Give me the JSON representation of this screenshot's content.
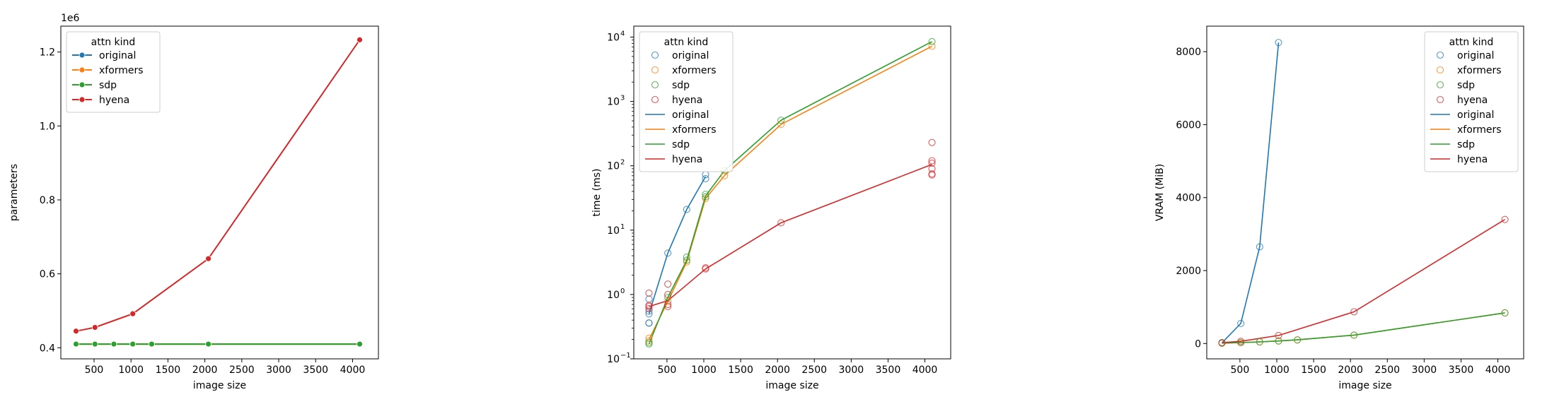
{
  "colors": {
    "original": "#1f77b4",
    "xformers": "#ff7f0e",
    "sdp": "#2ca02c",
    "hyena": "#d62728"
  },
  "chart_data": [
    {
      "type": "line",
      "xlabel": "image size",
      "ylabel": "parameters",
      "offset_label": "1e6",
      "xlim": [
        50,
        4350
      ],
      "ylim": [
        0.37,
        1.27
      ],
      "xticks": [
        500,
        1000,
        1500,
        2000,
        2500,
        3000,
        3500,
        4000
      ],
      "yticks": [
        0.4,
        0.6,
        0.8,
        1.0,
        1.2
      ],
      "ytick_labels": [
        "0.4",
        "0.6",
        "0.8",
        "1.0",
        "1.2"
      ],
      "legend": {
        "title": "attn kind",
        "placement": "top-left",
        "style": "line-marker",
        "entries": [
          "original",
          "xformers",
          "sdp",
          "hyena"
        ]
      },
      "series": [
        {
          "name": "original",
          "x": [
            256,
            512,
            768,
            1024,
            1280,
            2048,
            4096
          ],
          "y": [
            0.41,
            0.41,
            0.41,
            0.41,
            0.41,
            0.41,
            0.41
          ]
        },
        {
          "name": "xformers",
          "x": [
            256,
            512,
            768,
            1024,
            1280,
            2048,
            4096
          ],
          "y": [
            0.41,
            0.41,
            0.41,
            0.41,
            0.41,
            0.41,
            0.41
          ]
        },
        {
          "name": "sdp",
          "x": [
            256,
            512,
            768,
            1024,
            1280,
            2048,
            4096
          ],
          "y": [
            0.41,
            0.41,
            0.41,
            0.41,
            0.41,
            0.41,
            0.41
          ]
        },
        {
          "name": "hyena",
          "x": [
            256,
            512,
            1024,
            2048,
            4096
          ],
          "y": [
            0.445,
            0.455,
            0.492,
            0.641,
            1.233
          ]
        }
      ]
    },
    {
      "type": "scatter",
      "xlabel": "image size",
      "ylabel": "time (ms)",
      "yscale": "log",
      "xlim": [
        50,
        4350
      ],
      "ylim": [
        0.1,
        14800
      ],
      "xticks": [
        500,
        1000,
        1500,
        2000,
        2500,
        3000,
        3500,
        4000
      ],
      "yticks": [
        0.1,
        1,
        10,
        100,
        1000,
        10000
      ],
      "ytick_labels": [
        "10",
        "10",
        "10",
        "10",
        "10",
        "10"
      ],
      "ytick_exponents": [
        "−1",
        "0",
        "1",
        "2",
        "3",
        "4"
      ],
      "legend": {
        "title": "attn kind",
        "placement": "top-left",
        "style": "scatter-then-line",
        "entries": [
          "original",
          "xformers",
          "sdp",
          "hyena",
          "original",
          "xformers",
          "sdp",
          "hyena"
        ]
      },
      "scatter": [
        {
          "name": "original",
          "x": [
            256,
            256,
            256,
            256,
            256,
            512,
            768,
            1024,
            1024
          ],
          "y": [
            0.36,
            0.36,
            0.5,
            0.55,
            0.85,
            4.4,
            21,
            63,
            73
          ]
        },
        {
          "name": "xformers",
          "x": [
            256,
            256,
            512,
            768,
            1024,
            1280,
            2048,
            4096
          ],
          "y": [
            0.19,
            0.21,
            0.78,
            3.2,
            31,
            70,
            440,
            7200
          ]
        },
        {
          "name": "sdp",
          "x": [
            256,
            256,
            512,
            768,
            768,
            1024,
            1024,
            1280,
            2048,
            4096
          ],
          "y": [
            0.17,
            0.18,
            0.9,
            3.4,
            3.8,
            33,
            36,
            84,
            510,
            8500
          ]
        },
        {
          "name": "hyena",
          "x": [
            256,
            256,
            256,
            256,
            512,
            512,
            512,
            512,
            1024,
            1024,
            2048,
            4096,
            4096,
            4096,
            4096,
            4096,
            4096
          ],
          "y": [
            0.6,
            0.65,
            0.68,
            1.05,
            0.65,
            0.7,
            1.0,
            1.45,
            2.5,
            2.6,
            13,
            72,
            75,
            90,
            110,
            120,
            230
          ]
        }
      ],
      "series": [
        {
          "name": "original",
          "x": [
            256,
            512,
            768,
            1024
          ],
          "y": [
            0.5,
            4.4,
            21,
            68
          ]
        },
        {
          "name": "xformers",
          "x": [
            256,
            512,
            768,
            1024,
            1280,
            2048,
            4096
          ],
          "y": [
            0.2,
            0.78,
            3.2,
            31,
            70,
            440,
            7200
          ]
        },
        {
          "name": "sdp",
          "x": [
            256,
            512,
            768,
            1024,
            1280,
            2048,
            4096
          ],
          "y": [
            0.17,
            0.9,
            3.4,
            34,
            84,
            510,
            8500
          ]
        },
        {
          "name": "hyena",
          "x": [
            256,
            512,
            1024,
            2048,
            4096
          ],
          "y": [
            0.65,
            0.8,
            2.5,
            13,
            105
          ]
        }
      ]
    },
    {
      "type": "scatter",
      "xlabel": "image size",
      "ylabel": "VRAM (MiB)",
      "xlim": [
        50,
        4350
      ],
      "ylim": [
        -420,
        8700
      ],
      "xticks": [
        500,
        1000,
        1500,
        2000,
        2500,
        3000,
        3500,
        4000
      ],
      "yticks": [
        0,
        2000,
        4000,
        6000,
        8000
      ],
      "ytick_labels": [
        "0",
        "2000",
        "4000",
        "6000",
        "8000"
      ],
      "legend": {
        "title": "attn kind",
        "placement": "top-right",
        "style": "scatter-then-line",
        "entries": [
          "original",
          "xformers",
          "sdp",
          "hyena",
          "original",
          "xformers",
          "sdp",
          "hyena"
        ]
      },
      "scatter": [
        {
          "name": "original",
          "x": [
            256,
            512,
            768,
            1024
          ],
          "y": [
            20,
            550,
            2650,
            8250
          ]
        },
        {
          "name": "xformers",
          "x": [
            256,
            512,
            768,
            1024,
            1280,
            2048,
            4096
          ],
          "y": [
            10,
            25,
            45,
            70,
            100,
            230,
            840
          ]
        },
        {
          "name": "sdp",
          "x": [
            256,
            512,
            768,
            1024,
            1280,
            2048,
            4096
          ],
          "y": [
            10,
            25,
            45,
            70,
            100,
            230,
            840
          ]
        },
        {
          "name": "hyena",
          "x": [
            256,
            512,
            1024,
            2048,
            4096
          ],
          "y": [
            25,
            60,
            220,
            870,
            3400
          ]
        }
      ],
      "series": [
        {
          "name": "original",
          "x": [
            256,
            512,
            768,
            1024
          ],
          "y": [
            20,
            550,
            2650,
            8250
          ]
        },
        {
          "name": "xformers",
          "x": [
            256,
            512,
            768,
            1024,
            1280,
            2048,
            4096
          ],
          "y": [
            10,
            25,
            45,
            70,
            100,
            230,
            840
          ]
        },
        {
          "name": "sdp",
          "x": [
            256,
            512,
            768,
            1024,
            1280,
            2048,
            4096
          ],
          "y": [
            10,
            25,
            45,
            70,
            100,
            230,
            840
          ]
        },
        {
          "name": "hyena",
          "x": [
            256,
            512,
            1024,
            2048,
            4096
          ],
          "y": [
            25,
            60,
            220,
            870,
            3400
          ]
        }
      ]
    }
  ]
}
